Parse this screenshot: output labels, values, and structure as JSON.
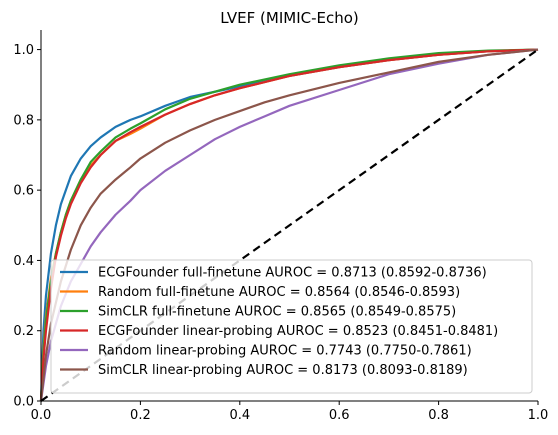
{
  "chart_data": {
    "type": "line",
    "title": "LVEF (MIMIC-Echo)",
    "xlabel": "",
    "ylabel": "",
    "xlim": [
      0,
      1
    ],
    "ylim": [
      0,
      1.05
    ],
    "xticks": [
      "0.0",
      "0.2",
      "0.4",
      "0.6",
      "0.8",
      "1.0"
    ],
    "yticks": [
      "0.0",
      "0.2",
      "0.4",
      "0.6",
      "0.8",
      "1.0"
    ],
    "grid": false,
    "legend_position": "lower-right",
    "diagonal": {
      "style": "dashed",
      "color": "#000000"
    },
    "series": [
      {
        "name": "ECGFounder full-finetune AUROC = 0.8713 (0.8592-0.8736)",
        "color": "#1f77b4",
        "x": [
          0,
          0.005,
          0.01,
          0.02,
          0.03,
          0.04,
          0.05,
          0.06,
          0.08,
          0.1,
          0.12,
          0.15,
          0.18,
          0.2,
          0.25,
          0.3,
          0.35,
          0.4,
          0.5,
          0.6,
          0.7,
          0.8,
          0.9,
          1.0
        ],
        "y": [
          0,
          0.2,
          0.3,
          0.42,
          0.5,
          0.56,
          0.6,
          0.64,
          0.69,
          0.725,
          0.75,
          0.78,
          0.8,
          0.81,
          0.84,
          0.865,
          0.88,
          0.895,
          0.925,
          0.95,
          0.97,
          0.985,
          0.995,
          1.0
        ]
      },
      {
        "name": "Random full-finetune AUROC = 0.8564 (0.8546-0.8593)",
        "color": "#ff7f0e",
        "x": [
          0,
          0.005,
          0.01,
          0.02,
          0.03,
          0.04,
          0.05,
          0.06,
          0.08,
          0.1,
          0.12,
          0.15,
          0.18,
          0.2,
          0.25,
          0.3,
          0.35,
          0.4,
          0.5,
          0.6,
          0.7,
          0.8,
          0.9,
          1.0
        ],
        "y": [
          0,
          0.15,
          0.24,
          0.35,
          0.42,
          0.48,
          0.53,
          0.57,
          0.63,
          0.67,
          0.7,
          0.74,
          0.76,
          0.775,
          0.815,
          0.845,
          0.87,
          0.89,
          0.925,
          0.95,
          0.97,
          0.985,
          0.995,
          1.0
        ]
      },
      {
        "name": "SimCLR full-finetune AUROC = 0.8565 (0.8549-0.8575)",
        "color": "#2ca02c",
        "x": [
          0,
          0.005,
          0.01,
          0.02,
          0.03,
          0.04,
          0.05,
          0.06,
          0.08,
          0.1,
          0.12,
          0.15,
          0.18,
          0.2,
          0.25,
          0.3,
          0.35,
          0.4,
          0.5,
          0.6,
          0.7,
          0.8,
          0.9,
          1.0
        ],
        "y": [
          0,
          0.14,
          0.23,
          0.34,
          0.42,
          0.48,
          0.53,
          0.57,
          0.63,
          0.68,
          0.71,
          0.75,
          0.775,
          0.79,
          0.83,
          0.86,
          0.88,
          0.9,
          0.93,
          0.955,
          0.975,
          0.99,
          0.997,
          1.0
        ]
      },
      {
        "name": "ECGFounder linear-probing AUROC = 0.8523 (0.8451-0.8481)",
        "color": "#d62728",
        "x": [
          0,
          0.005,
          0.01,
          0.02,
          0.03,
          0.04,
          0.05,
          0.06,
          0.08,
          0.1,
          0.12,
          0.15,
          0.18,
          0.2,
          0.25,
          0.3,
          0.35,
          0.4,
          0.5,
          0.6,
          0.7,
          0.8,
          0.9,
          1.0
        ],
        "y": [
          0,
          0.12,
          0.2,
          0.32,
          0.41,
          0.47,
          0.52,
          0.56,
          0.62,
          0.665,
          0.7,
          0.74,
          0.765,
          0.78,
          0.815,
          0.845,
          0.87,
          0.89,
          0.925,
          0.95,
          0.97,
          0.985,
          0.995,
          1.0
        ]
      },
      {
        "name": "Random linear-probing AUROC = 0.7743 (0.7750-0.7861)",
        "color": "#9467bd",
        "x": [
          0,
          0.01,
          0.02,
          0.04,
          0.06,
          0.08,
          0.1,
          0.12,
          0.15,
          0.18,
          0.2,
          0.25,
          0.3,
          0.35,
          0.4,
          0.45,
          0.5,
          0.6,
          0.7,
          0.8,
          0.9,
          1.0
        ],
        "y": [
          0,
          0.1,
          0.17,
          0.27,
          0.34,
          0.39,
          0.44,
          0.48,
          0.53,
          0.57,
          0.6,
          0.655,
          0.7,
          0.745,
          0.78,
          0.81,
          0.84,
          0.885,
          0.93,
          0.96,
          0.985,
          1.0
        ]
      },
      {
        "name": "SimCLR linear-probing AUROC = 0.8173 (0.8093-0.8189)",
        "color": "#8c564b",
        "x": [
          0,
          0.01,
          0.02,
          0.04,
          0.06,
          0.08,
          0.1,
          0.12,
          0.15,
          0.18,
          0.2,
          0.25,
          0.3,
          0.35,
          0.4,
          0.45,
          0.5,
          0.6,
          0.7,
          0.8,
          0.9,
          1.0
        ],
        "y": [
          0,
          0.13,
          0.22,
          0.34,
          0.43,
          0.5,
          0.55,
          0.59,
          0.63,
          0.665,
          0.69,
          0.735,
          0.77,
          0.8,
          0.825,
          0.85,
          0.87,
          0.905,
          0.935,
          0.965,
          0.985,
          1.0
        ]
      }
    ]
  }
}
